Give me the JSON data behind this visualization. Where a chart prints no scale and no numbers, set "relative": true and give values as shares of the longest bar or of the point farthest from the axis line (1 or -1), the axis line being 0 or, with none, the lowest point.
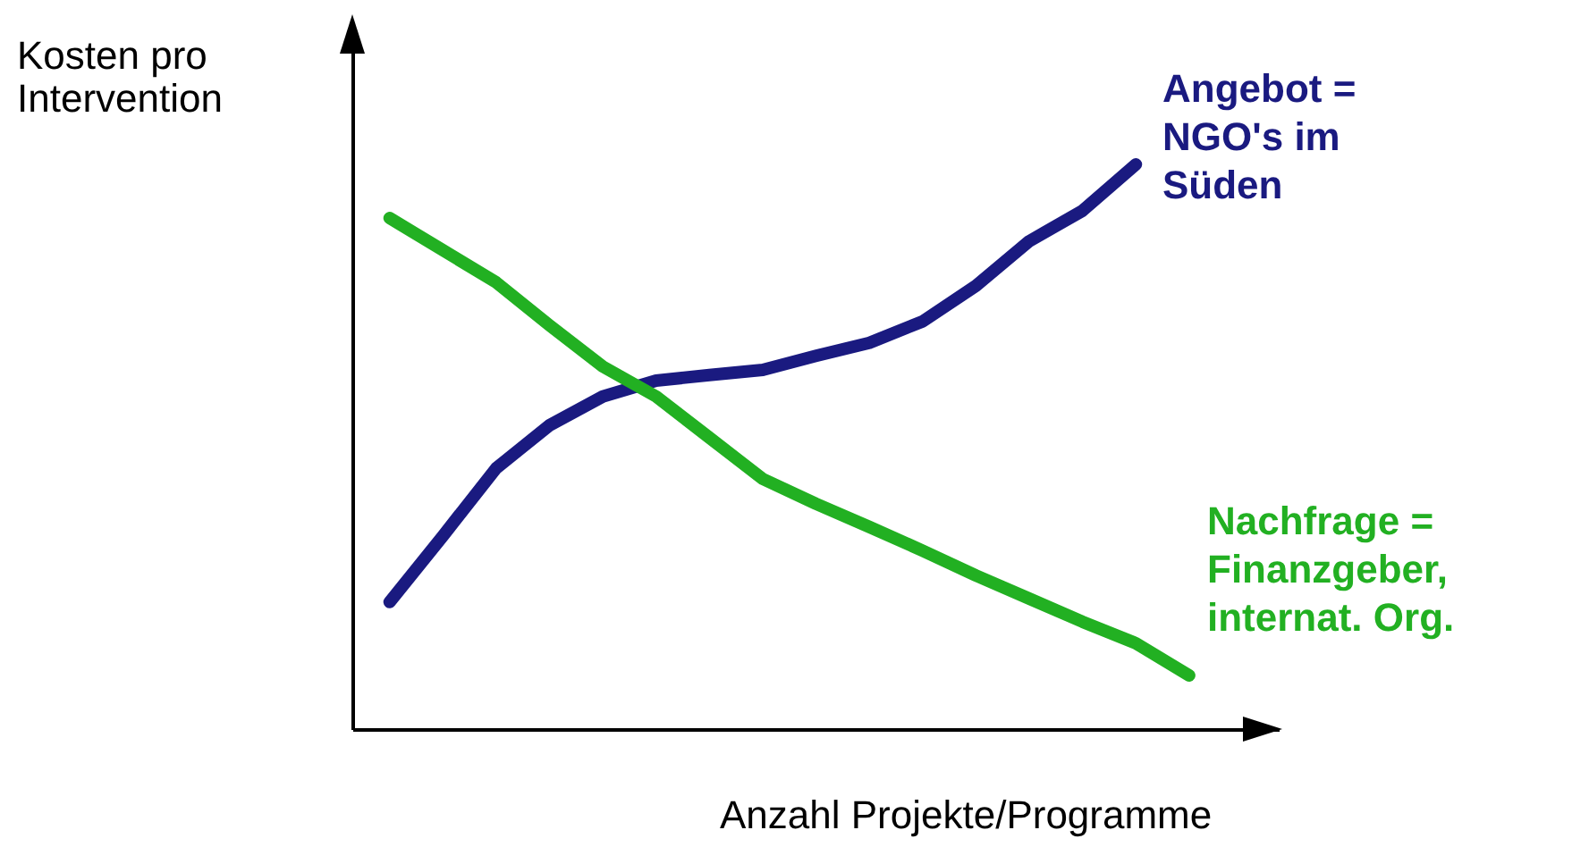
{
  "chart_data": {
    "type": "line",
    "relative": true,
    "xlabel": "Anzahl Projekte/Programme",
    "ylabel": "Kosten pro\nIntervention",
    "categories": [
      null,
      null,
      null,
      null,
      null,
      null,
      null,
      null,
      null,
      null,
      null,
      null,
      null,
      null,
      null,
      null
    ],
    "series": [
      {
        "name": "Angebot =\nNGO's im\nSüden",
        "color": "#1a1a80",
        "values": [
          0.225,
          0.342,
          0.462,
          0.538,
          0.589,
          0.617,
          0.627,
          0.636,
          0.661,
          0.684,
          0.722,
          0.785,
          0.864,
          0.918,
          1,
          null
        ]
      },
      {
        "name": "Nachfrage =\nFinanzgeber,\ninternat. Org.",
        "color": "#22b022",
        "values": [
          0.905,
          0.848,
          0.791,
          0.715,
          0.642,
          0.589,
          0.516,
          0.443,
          0.399,
          0.358,
          0.316,
          0.272,
          0.231,
          0.19,
          0.152,
          0.095
        ]
      }
    ]
  }
}
